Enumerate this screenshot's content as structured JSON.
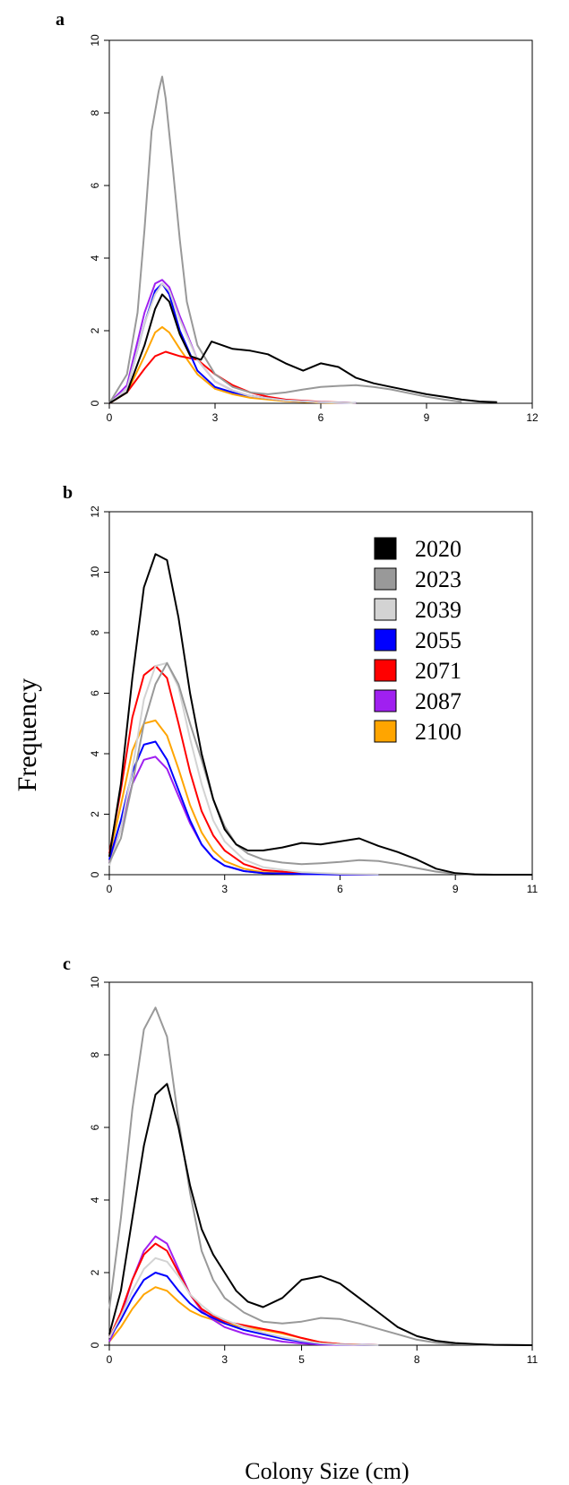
{
  "figure": {
    "ylabel": "Frequency",
    "xlabel": "Colony Size (cm)"
  },
  "chart_data": [
    {
      "panel": "a",
      "type": "line",
      "xlim": [
        0,
        12
      ],
      "ylim": [
        0,
        10
      ],
      "xticks": [
        0,
        3,
        6,
        9,
        12
      ],
      "yticks": [
        0,
        2,
        4,
        6,
        8,
        10
      ],
      "legend": false,
      "series": [
        {
          "name": "2020",
          "color": "#000000",
          "x": [
            0,
            0.5,
            1,
            1.3,
            1.5,
            1.7,
            2,
            2.3,
            2.6,
            2.9,
            3.2,
            3.5,
            4,
            4.5,
            5,
            5.5,
            6,
            6.5,
            7,
            7.5,
            8,
            8.5,
            9,
            9.5,
            10,
            10.5,
            11
          ],
          "y": [
            0,
            0.3,
            1.6,
            2.6,
            3.0,
            2.8,
            1.9,
            1.3,
            1.2,
            1.7,
            1.6,
            1.5,
            1.45,
            1.35,
            1.1,
            0.9,
            1.1,
            1.0,
            0.7,
            0.55,
            0.45,
            0.35,
            0.25,
            0.18,
            0.1,
            0.05,
            0.03
          ]
        },
        {
          "name": "2023",
          "color": "#999999",
          "x": [
            0,
            0.5,
            0.8,
            1,
            1.2,
            1.4,
            1.5,
            1.6,
            1.8,
            2,
            2.2,
            2.5,
            3,
            3.5,
            4,
            4.5,
            5,
            5.5,
            6,
            6.5,
            7,
            7.5,
            8,
            8.5,
            9,
            9.5,
            10
          ],
          "y": [
            0,
            0.8,
            2.5,
            4.8,
            7.5,
            8.6,
            9.0,
            8.4,
            6.5,
            4.5,
            2.8,
            1.6,
            0.8,
            0.45,
            0.3,
            0.25,
            0.3,
            0.38,
            0.45,
            0.48,
            0.5,
            0.45,
            0.38,
            0.28,
            0.18,
            0.1,
            0.04
          ]
        },
        {
          "name": "2039",
          "color": "#d3d3d3",
          "x": [
            0,
            0.5,
            1,
            1.3,
            1.5,
            1.7,
            2,
            2.5,
            3,
            3.5,
            4,
            5,
            6,
            7
          ],
          "y": [
            0,
            0.4,
            2.2,
            3.0,
            3.3,
            3.1,
            2.3,
            1.2,
            0.6,
            0.35,
            0.2,
            0.08,
            0.03,
            0.01
          ]
        },
        {
          "name": "2055",
          "color": "#0000ff",
          "x": [
            0,
            0.5,
            1,
            1.3,
            1.5,
            1.7,
            2,
            2.5,
            3,
            3.5,
            4,
            5,
            6,
            7
          ],
          "y": [
            0,
            0.4,
            2.2,
            3.1,
            3.3,
            3.0,
            2.0,
            0.9,
            0.45,
            0.3,
            0.2,
            0.08,
            0.03,
            0.01
          ]
        },
        {
          "name": "2071",
          "color": "#ff0000",
          "x": [
            0,
            0.5,
            1,
            1.3,
            1.6,
            2,
            2.5,
            3,
            3.5,
            4,
            4.5,
            5,
            6,
            7
          ],
          "y": [
            0,
            0.3,
            0.95,
            1.3,
            1.42,
            1.3,
            1.2,
            0.8,
            0.5,
            0.3,
            0.18,
            0.1,
            0.04,
            0.01
          ]
        },
        {
          "name": "2087",
          "color": "#a020f0",
          "x": [
            0,
            0.5,
            1,
            1.3,
            1.5,
            1.7,
            2,
            2.5,
            3,
            3.5,
            4,
            5,
            6,
            7
          ],
          "y": [
            0,
            0.5,
            2.5,
            3.3,
            3.4,
            3.2,
            2.4,
            1.2,
            0.6,
            0.35,
            0.2,
            0.08,
            0.03,
            0.01
          ]
        },
        {
          "name": "2100",
          "color": "#ffa500",
          "x": [
            0,
            0.5,
            1,
            1.3,
            1.5,
            1.7,
            2,
            2.5,
            3,
            3.5,
            4,
            5,
            6,
            7
          ],
          "y": [
            0,
            0.3,
            1.3,
            1.95,
            2.1,
            1.95,
            1.5,
            0.8,
            0.4,
            0.25,
            0.15,
            0.06,
            0.02,
            0.01
          ]
        }
      ]
    },
    {
      "panel": "b",
      "type": "line",
      "xlim": [
        0,
        11
      ],
      "ylim": [
        0,
        12
      ],
      "xticks": [
        0,
        3,
        6,
        9,
        11
      ],
      "yticks": [
        0,
        2,
        4,
        6,
        8,
        10,
        12
      ],
      "legend": true,
      "series": [
        {
          "name": "2020",
          "color": "#000000",
          "x": [
            0,
            0.3,
            0.6,
            0.9,
            1.2,
            1.5,
            1.8,
            2.1,
            2.4,
            2.7,
            3,
            3.3,
            3.6,
            4,
            4.5,
            5,
            5.5,
            6,
            6.5,
            7,
            7.5,
            8,
            8.5,
            9,
            9.5,
            10,
            11
          ],
          "y": [
            0.6,
            3,
            6.5,
            9.5,
            10.6,
            10.4,
            8.5,
            6,
            4,
            2.5,
            1.5,
            1.0,
            0.8,
            0.8,
            0.9,
            1.05,
            1.0,
            1.1,
            1.2,
            0.95,
            0.75,
            0.5,
            0.2,
            0.05,
            0.01,
            0,
            0
          ]
        },
        {
          "name": "2023",
          "color": "#999999",
          "x": [
            0,
            0.3,
            0.6,
            0.9,
            1.2,
            1.5,
            1.8,
            2.1,
            2.4,
            2.7,
            3,
            3.3,
            3.6,
            4,
            4.5,
            5,
            5.5,
            6,
            6.5,
            7,
            7.5,
            8,
            8.5,
            9,
            9.5,
            10,
            11
          ],
          "y": [
            0.4,
            1.2,
            3,
            5,
            6.3,
            7.0,
            6.3,
            5.0,
            3.8,
            2.5,
            1.6,
            1.0,
            0.7,
            0.5,
            0.4,
            0.35,
            0.38,
            0.42,
            0.48,
            0.45,
            0.35,
            0.22,
            0.1,
            0.03,
            0.01,
            0,
            0
          ]
        },
        {
          "name": "2039",
          "color": "#d3d3d3",
          "x": [
            0,
            0.3,
            0.6,
            0.9,
            1.2,
            1.5,
            1.8,
            2.1,
            2.4,
            2.7,
            3,
            3.5,
            4,
            5,
            6,
            7
          ],
          "y": [
            0.3,
            1.5,
            3.5,
            5.8,
            6.9,
            7.0,
            6.2,
            4.5,
            3.0,
            1.8,
            1.1,
            0.5,
            0.25,
            0.08,
            0.03,
            0.01
          ]
        },
        {
          "name": "2055",
          "color": "#0000ff",
          "x": [
            0,
            0.3,
            0.6,
            0.9,
            1.2,
            1.5,
            1.8,
            2.1,
            2.4,
            2.7,
            3,
            3.5,
            4,
            5,
            6,
            7
          ],
          "y": [
            0.5,
            1.8,
            3.4,
            4.3,
            4.4,
            3.8,
            2.8,
            1.8,
            1.0,
            0.55,
            0.3,
            0.12,
            0.05,
            0.02,
            0.01,
            0
          ]
        },
        {
          "name": "2071",
          "color": "#ff0000",
          "x": [
            0,
            0.3,
            0.6,
            0.9,
            1.2,
            1.5,
            1.8,
            2.1,
            2.4,
            2.7,
            3,
            3.5,
            4,
            5,
            6,
            7
          ],
          "y": [
            0.7,
            2.8,
            5.2,
            6.6,
            6.9,
            6.5,
            5.0,
            3.4,
            2.1,
            1.3,
            0.8,
            0.35,
            0.15,
            0.05,
            0.02,
            0
          ]
        },
        {
          "name": "2087",
          "color": "#a020f0",
          "x": [
            0,
            0.3,
            0.6,
            0.9,
            1.2,
            1.5,
            1.8,
            2.1,
            2.4,
            2.7,
            3,
            3.5,
            4,
            5,
            6,
            7
          ],
          "y": [
            0.4,
            1.5,
            3.0,
            3.8,
            3.9,
            3.5,
            2.6,
            1.7,
            1.0,
            0.55,
            0.3,
            0.12,
            0.05,
            0.02,
            0.01,
            0
          ]
        },
        {
          "name": "2100",
          "color": "#ffa500",
          "x": [
            0,
            0.3,
            0.6,
            0.9,
            1.2,
            1.5,
            1.8,
            2.1,
            2.4,
            2.7,
            3,
            3.5,
            4,
            5,
            6,
            7
          ],
          "y": [
            0.6,
            2.3,
            4.1,
            5.0,
            5.1,
            4.6,
            3.5,
            2.3,
            1.4,
            0.8,
            0.45,
            0.2,
            0.08,
            0.03,
            0.01,
            0
          ]
        }
      ]
    },
    {
      "panel": "c",
      "type": "line",
      "xlim": [
        0,
        11
      ],
      "ylim": [
        0,
        10
      ],
      "xticks": [
        0,
        3,
        5,
        8,
        11
      ],
      "yticks": [
        0,
        2,
        4,
        6,
        8,
        10
      ],
      "legend": false,
      "series": [
        {
          "name": "2020",
          "color": "#000000",
          "x": [
            0,
            0.3,
            0.6,
            0.9,
            1.2,
            1.5,
            1.8,
            2.1,
            2.4,
            2.7,
            3,
            3.3,
            3.6,
            4,
            4.5,
            5,
            5.5,
            6,
            6.5,
            7,
            7.5,
            8,
            8.5,
            9,
            9.5,
            10,
            11
          ],
          "y": [
            0.3,
            1.5,
            3.5,
            5.5,
            6.9,
            7.2,
            6.0,
            4.4,
            3.2,
            2.5,
            2.0,
            1.5,
            1.2,
            1.05,
            1.3,
            1.8,
            1.9,
            1.7,
            1.3,
            0.9,
            0.5,
            0.25,
            0.12,
            0.06,
            0.03,
            0.01,
            0
          ]
        },
        {
          "name": "2023",
          "color": "#999999",
          "x": [
            0,
            0.3,
            0.6,
            0.9,
            1.2,
            1.5,
            1.8,
            2.1,
            2.4,
            2.7,
            3,
            3.5,
            4,
            4.5,
            5,
            5.5,
            6,
            6.5,
            7,
            7.5,
            8,
            8.5,
            9,
            10,
            11
          ],
          "y": [
            1.0,
            3.5,
            6.5,
            8.7,
            9.3,
            8.5,
            6.2,
            4.2,
            2.6,
            1.8,
            1.3,
            0.9,
            0.65,
            0.6,
            0.65,
            0.75,
            0.72,
            0.6,
            0.45,
            0.3,
            0.15,
            0.07,
            0.03,
            0.01,
            0
          ]
        },
        {
          "name": "2039",
          "color": "#d3d3d3",
          "x": [
            0,
            0.3,
            0.6,
            0.9,
            1.2,
            1.5,
            1.8,
            2.1,
            2.4,
            2.7,
            3,
            3.5,
            4,
            4.5,
            5,
            5.5,
            6,
            7
          ],
          "y": [
            0.2,
            0.8,
            1.5,
            2.1,
            2.4,
            2.3,
            1.9,
            1.4,
            1.1,
            0.85,
            0.7,
            0.5,
            0.35,
            0.22,
            0.12,
            0.05,
            0.02,
            0
          ]
        },
        {
          "name": "2055",
          "color": "#0000ff",
          "x": [
            0,
            0.3,
            0.6,
            0.9,
            1.2,
            1.5,
            1.8,
            2.1,
            2.4,
            2.7,
            3,
            3.5,
            4,
            4.5,
            5,
            5.5,
            6,
            7
          ],
          "y": [
            0.2,
            0.7,
            1.3,
            1.8,
            2.0,
            1.9,
            1.5,
            1.15,
            0.9,
            0.75,
            0.6,
            0.42,
            0.3,
            0.18,
            0.1,
            0.04,
            0.02,
            0
          ]
        },
        {
          "name": "2071",
          "color": "#ff0000",
          "x": [
            0,
            0.3,
            0.6,
            0.9,
            1.2,
            1.5,
            1.8,
            2.1,
            2.4,
            2.7,
            3,
            3.5,
            4,
            4.5,
            5,
            5.5,
            6,
            7
          ],
          "y": [
            0.2,
            0.9,
            1.8,
            2.5,
            2.8,
            2.6,
            2.0,
            1.4,
            1.0,
            0.8,
            0.65,
            0.55,
            0.45,
            0.35,
            0.2,
            0.08,
            0.03,
            0
          ]
        },
        {
          "name": "2087",
          "color": "#a020f0",
          "x": [
            0,
            0.3,
            0.6,
            0.9,
            1.2,
            1.5,
            1.8,
            2.1,
            2.4,
            2.7,
            3,
            3.5,
            4,
            4.5,
            5,
            5.5,
            6,
            7
          ],
          "y": [
            0.1,
            0.8,
            1.8,
            2.6,
            3.0,
            2.8,
            2.1,
            1.4,
            0.95,
            0.7,
            0.5,
            0.32,
            0.2,
            0.1,
            0.05,
            0.02,
            0.01,
            0
          ]
        },
        {
          "name": "2100",
          "color": "#ffa500",
          "x": [
            0,
            0.3,
            0.6,
            0.9,
            1.2,
            1.5,
            1.8,
            2.1,
            2.4,
            2.7,
            3,
            3.5,
            4,
            4.5,
            5,
            5.5,
            6,
            7
          ],
          "y": [
            0.1,
            0.5,
            1.0,
            1.4,
            1.6,
            1.5,
            1.2,
            0.95,
            0.8,
            0.7,
            0.6,
            0.5,
            0.42,
            0.32,
            0.2,
            0.08,
            0.03,
            0
          ]
        }
      ]
    }
  ]
}
